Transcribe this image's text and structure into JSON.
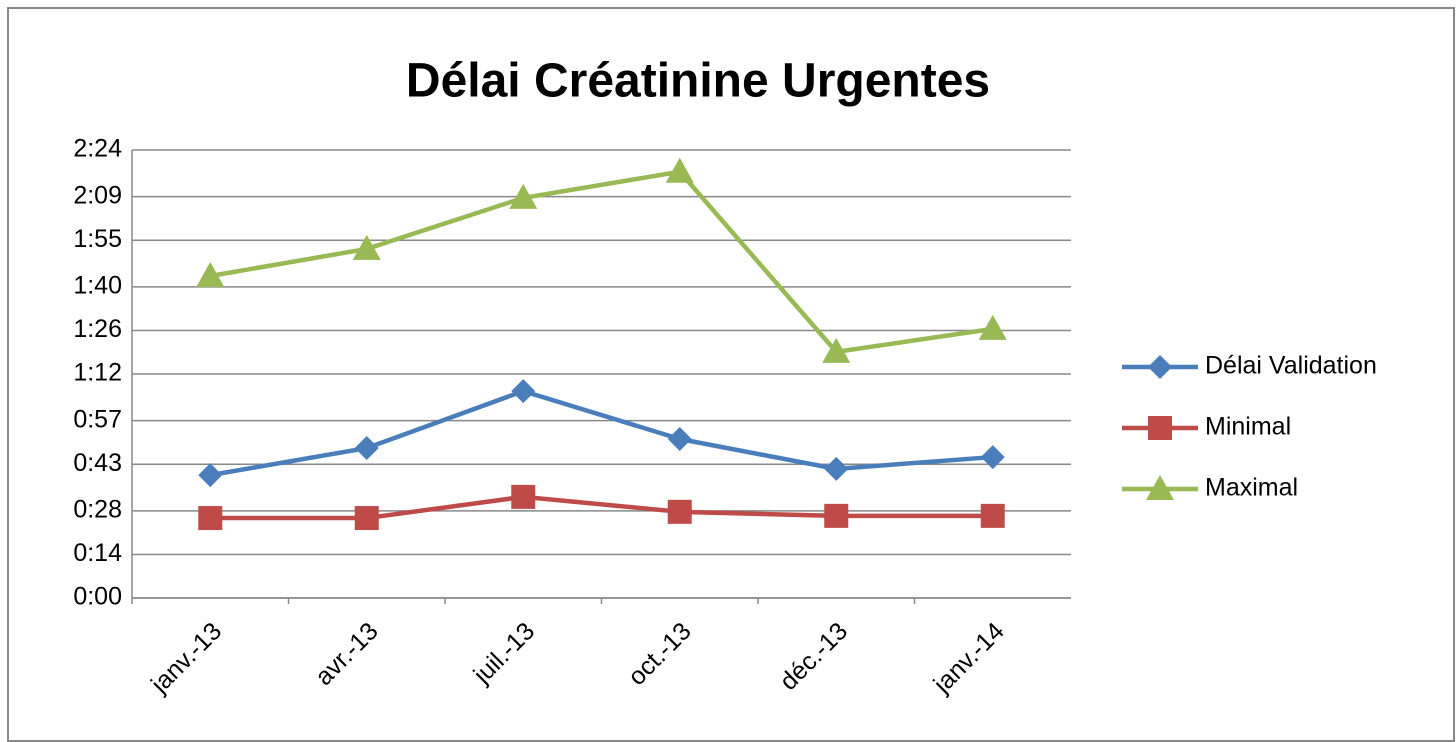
{
  "chart_data": {
    "type": "line",
    "title": "Délai Créatinine Urgentes",
    "categories": [
      "janv.-13",
      "avr.-13",
      "juil.-13",
      "oct.-13",
      "déc.-13",
      "janv.-14"
    ],
    "series": [
      {
        "name": "Délai Validation",
        "color": "#4a7ebb",
        "marker": "diamond",
        "values": [
          39.5,
          48.2,
          66.5,
          51.1,
          41.5,
          45.3
        ]
      },
      {
        "name": "Minimal",
        "color": "#be4b48",
        "marker": "square",
        "values": [
          25.7,
          25.7,
          32.5,
          27.7,
          26.4,
          26.4
        ]
      },
      {
        "name": "Maximal",
        "color": "#98b954",
        "marker": "triangle",
        "values": [
          103.5,
          112.2,
          128.6,
          137,
          79.1,
          86.5
        ]
      }
    ],
    "ylim": [
      0,
      144
    ],
    "yticks": [
      {
        "value": 0,
        "label": "0:00"
      },
      {
        "value": 14,
        "label": "0:14"
      },
      {
        "value": 28,
        "label": "0:28"
      },
      {
        "value": 43,
        "label": "0:43"
      },
      {
        "value": 57,
        "label": "0:57"
      },
      {
        "value": 72,
        "label": "1:12"
      },
      {
        "value": 86,
        "label": "1:26"
      },
      {
        "value": 100,
        "label": "1:40"
      },
      {
        "value": 115,
        "label": "1:55"
      },
      {
        "value": 129,
        "label": "2:09"
      },
      {
        "value": 144,
        "label": "2:24"
      }
    ],
    "grid": true,
    "legend": "right"
  }
}
